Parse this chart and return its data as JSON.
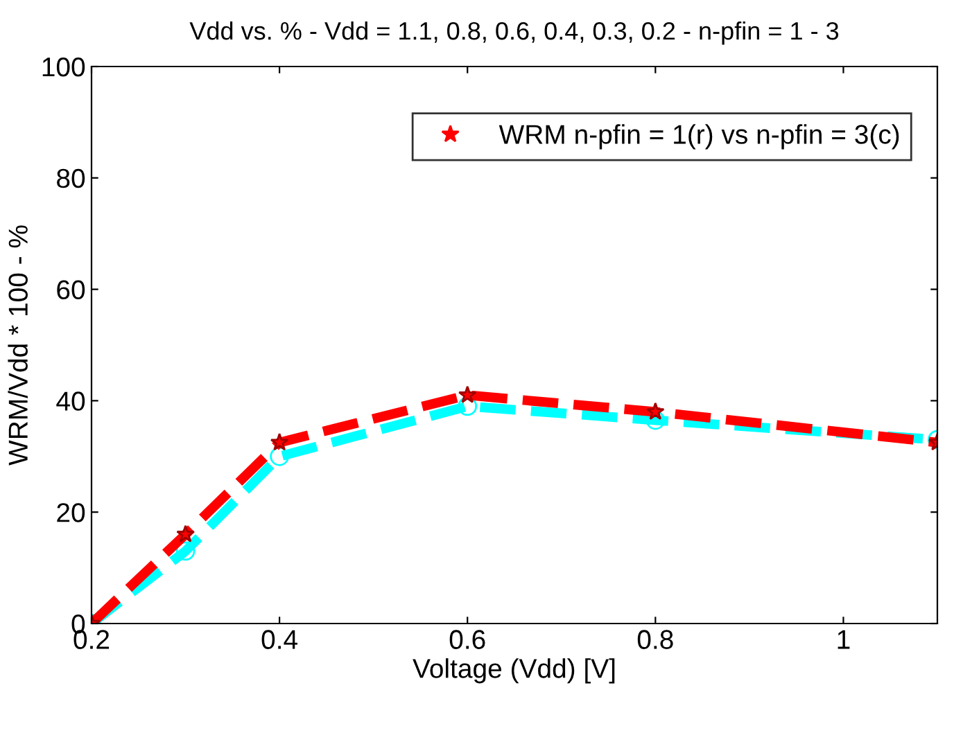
{
  "chart_data": {
    "type": "line",
    "title": "Vdd vs. % - Vdd = 1.1, 0.8, 0.6, 0.4, 0.3, 0.2 - n-pfin = 1 - 3",
    "xlabel": "Voltage (Vdd) [V]",
    "ylabel": "WRM/Vdd * 100 - %",
    "x": [
      0.2,
      0.3,
      0.4,
      0.6,
      0.8,
      1.1
    ],
    "series": [
      {
        "name": "WRM n-pfin = 1(r) vs n-pfin = 3(c)",
        "color": "#ff0000",
        "marker": "star",
        "values": [
          0,
          16,
          32.5,
          41,
          38,
          32.5
        ]
      },
      {
        "color": "#00ffff",
        "marker": "circle",
        "values": [
          0,
          13,
          30,
          39,
          36.5,
          33
        ]
      }
    ],
    "xlim": [
      0.2,
      1.1
    ],
    "xticks": [
      0.2,
      0.4,
      0.6,
      0.8,
      1
    ],
    "ylim": [
      0,
      100
    ],
    "yticks": [
      0,
      20,
      40,
      60,
      80,
      100
    ],
    "grid": false,
    "legend": "top right",
    "line_style": "dashed"
  }
}
